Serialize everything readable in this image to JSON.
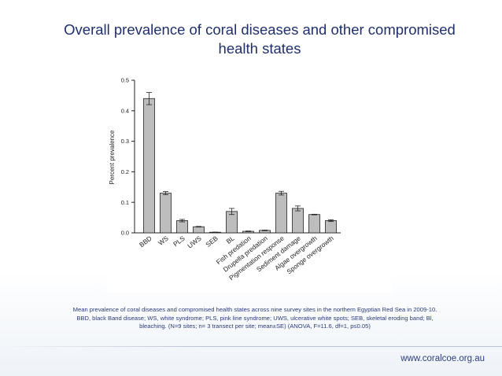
{
  "slide": {
    "title": "Overall prevalence of coral diseases and other compromised health states",
    "caption": "Mean prevalence of coral diseases and compromised health states across nine survey sites in the northern Egyptian Red Sea in 2009-10. BBD, black Band disease; WS, white syndrome; PLS, pink line syndrome; UWS, ulcerative white spots; SEB, skeletal eroding band; Bl, bleaching. (N=9 sites; n= 3 transect per site; mean±SE) (ANOVA, F=11.6, df=1, p≤0.05)",
    "footer_url": "www.coralcoe.org.au"
  },
  "chart_data": {
    "type": "bar",
    "title": "",
    "xlabel": "",
    "ylabel": "Percent prevalence",
    "ylim": [
      0,
      0.5
    ],
    "yticks": [
      "0.0",
      "0.1",
      "0.2",
      "0.3",
      "0.4",
      "0.5"
    ],
    "grid": false,
    "categories": [
      "BBD",
      "WS",
      "PLS",
      "UWS",
      "SEB",
      "BL",
      "Fish predation",
      "Drupella predation",
      "Pigmentation response",
      "Sediment damage",
      "Algae overgrowth",
      "Sponge overgrowth"
    ],
    "values": [
      0.44,
      0.13,
      0.04,
      0.02,
      0.002,
      0.07,
      0.005,
      0.008,
      0.13,
      0.08,
      0.06,
      0.04
    ],
    "errors": [
      0.02,
      0.005,
      0.004,
      0.001,
      0.0005,
      0.01,
      0.001,
      0.001,
      0.006,
      0.008,
      0.001,
      0.003
    ],
    "bar_color": "#bdbdbd",
    "bar_edge_color": "#222222"
  }
}
